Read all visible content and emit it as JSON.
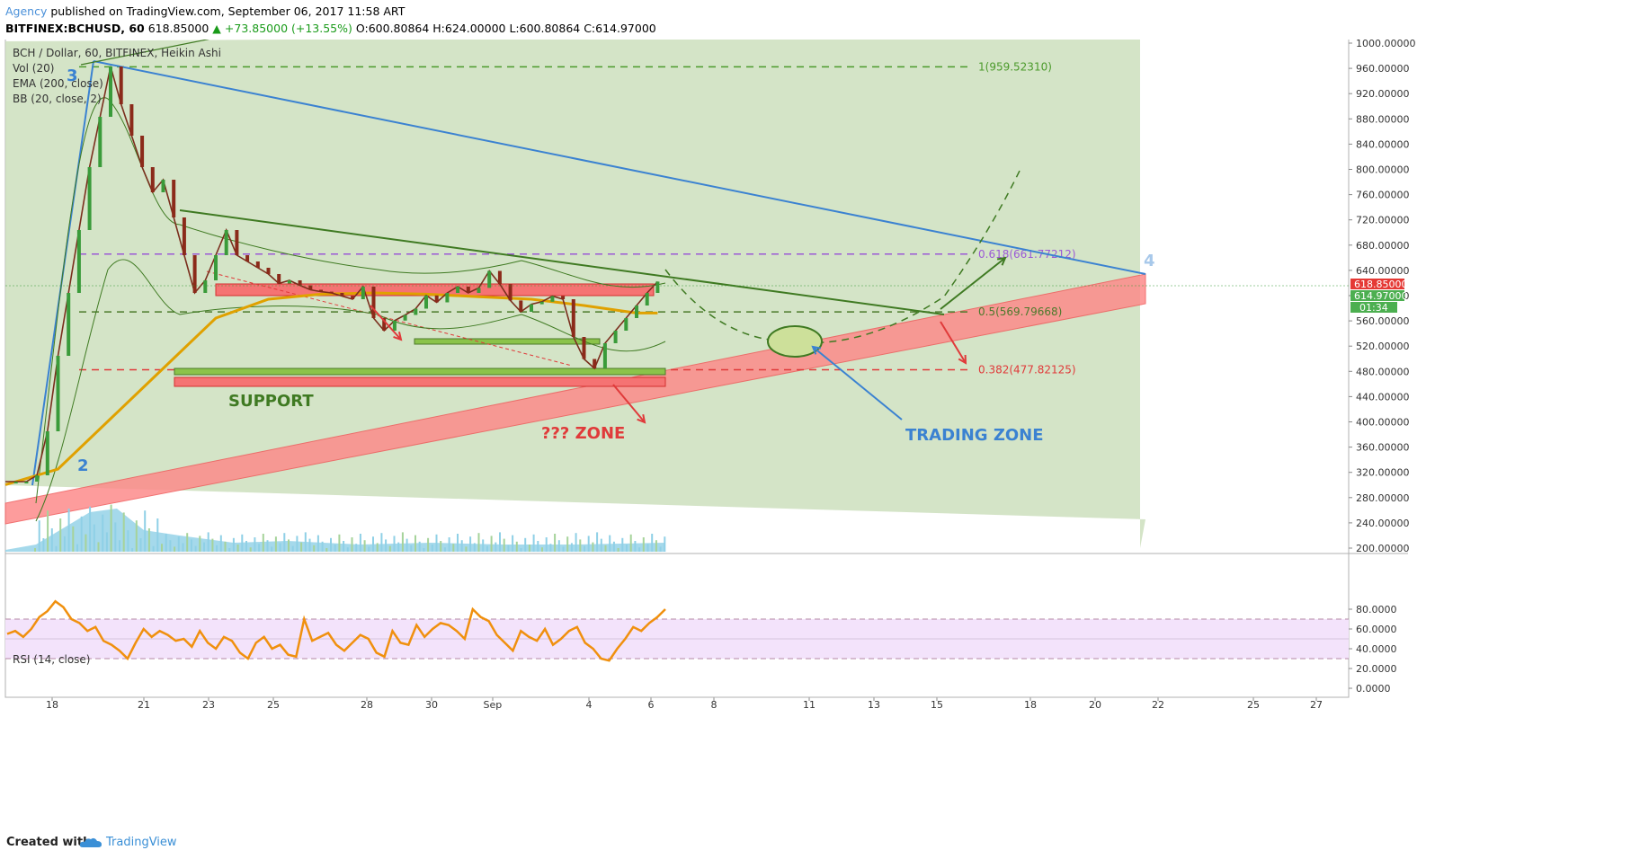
{
  "header": {
    "author": "Agency",
    "published": "published on TradingView.com, September 06, 2017 11:58 ART",
    "symbol": "BITFINEX:BCHUSD, 60",
    "last": "618.85000",
    "change": "+73.85000 (+13.55%)",
    "ohlc": "O:600.80864  H:624.00000  L:600.80864  C:614.97000"
  },
  "legend": {
    "title": "BCH / Dollar, 60, BITFINEX, Heikin Ashi",
    "vol": "Vol (20)",
    "ema": "EMA (200, close)",
    "bb": "BB (20, close, 2)",
    "rsi": "RSI (14, close)"
  },
  "chart_data": [
    {
      "type": "candlestick",
      "title": "BCH / Dollar, 60, BITFINEX, Heikin Ashi",
      "ylim": [
        200,
        1000
      ],
      "y_ticks": [
        "1000.00000",
        "960.00000",
        "920.00000",
        "880.00000",
        "840.00000",
        "800.00000",
        "760.00000",
        "720.00000",
        "680.00000",
        "640.00000",
        "600.00000",
        "560.00000",
        "520.00000",
        "480.00000",
        "440.00000",
        "400.00000",
        "360.00000",
        "320.00000",
        "280.00000",
        "240.00000",
        "200.00000"
      ],
      "x_ticks": [
        "18",
        "21",
        "23",
        "25",
        "28",
        "30",
        "Sep",
        "4",
        "6",
        "8",
        "11",
        "13",
        "15",
        "18",
        "20",
        "22",
        "25",
        "27"
      ],
      "price_path": [
        [
          0,
          300
        ],
        [
          2,
          300
        ],
        [
          4,
          300
        ],
        [
          6,
          310
        ],
        [
          8,
          380
        ],
        [
          10,
          500
        ],
        [
          12,
          600
        ],
        [
          14,
          700
        ],
        [
          16,
          800
        ],
        [
          18,
          880
        ],
        [
          20,
          960
        ],
        [
          22,
          900
        ],
        [
          24,
          850
        ],
        [
          26,
          800
        ],
        [
          28,
          760
        ],
        [
          30,
          780
        ],
        [
          32,
          720
        ],
        [
          34,
          660
        ],
        [
          36,
          600
        ],
        [
          38,
          620
        ],
        [
          40,
          660
        ],
        [
          42,
          700
        ],
        [
          44,
          660
        ],
        [
          46,
          650
        ],
        [
          48,
          640
        ],
        [
          50,
          630
        ],
        [
          52,
          615
        ],
        [
          54,
          620
        ],
        [
          56,
          612
        ],
        [
          58,
          605
        ],
        [
          60,
          602
        ],
        [
          62,
          600
        ],
        [
          64,
          595
        ],
        [
          66,
          590
        ],
        [
          68,
          610
        ],
        [
          70,
          560
        ],
        [
          72,
          540
        ],
        [
          74,
          556
        ],
        [
          76,
          565
        ],
        [
          78,
          575
        ],
        [
          80,
          596
        ],
        [
          82,
          585
        ],
        [
          84,
          600
        ],
        [
          86,
          610
        ],
        [
          88,
          600
        ],
        [
          90,
          608
        ],
        [
          92,
          635
        ],
        [
          94,
          614
        ],
        [
          96,
          588
        ],
        [
          98,
          570
        ],
        [
          100,
          582
        ],
        [
          102,
          586
        ],
        [
          104,
          595
        ],
        [
          106,
          590
        ],
        [
          108,
          530
        ],
        [
          110,
          495
        ],
        [
          112,
          480
        ],
        [
          114,
          520
        ],
        [
          116,
          540
        ],
        [
          118,
          560
        ],
        [
          120,
          580
        ],
        [
          122,
          600
        ],
        [
          124,
          618
        ]
      ],
      "ema200_path": [
        [
          0,
          295
        ],
        [
          10,
          320
        ],
        [
          20,
          400
        ],
        [
          30,
          480
        ],
        [
          40,
          560
        ],
        [
          50,
          590
        ],
        [
          60,
          598
        ],
        [
          70,
          600
        ],
        [
          80,
          598
        ],
        [
          90,
          594
        ],
        [
          100,
          590
        ],
        [
          110,
          580
        ],
        [
          120,
          568
        ],
        [
          124,
          568
        ]
      ],
      "annotations": {
        "wave_labels": [
          "3",
          "2",
          "4"
        ],
        "fib_levels": [
          {
            "label": "1(959.52310)",
            "value": 959.5231,
            "color": "#4b9a2b"
          },
          {
            "label": "0.618(661.77212)",
            "value": 661.77212,
            "color": "#9b59d6"
          },
          {
            "label": "0.5(569.79668)",
            "value": 569.79668,
            "color": "#4b7a2b"
          },
          {
            "label": "0.382(477.82125)",
            "value": 477.82125,
            "color": "#e03a3a"
          }
        ],
        "support": "SUPPORT",
        "zone": "??? ZONE",
        "trading_zone": "TRADING ZONE",
        "last_price": "618.85000",
        "close_price": "614.97000",
        "countdown": "01:34"
      }
    },
    {
      "type": "line",
      "title": "RSI (14, close)",
      "ylim": [
        0,
        90
      ],
      "y_ticks": [
        "80.0000",
        "60.0000",
        "40.0000",
        "20.0000",
        "0.0000"
      ],
      "band": [
        30,
        70
      ],
      "values": [
        55,
        58,
        52,
        60,
        72,
        78,
        88,
        82,
        70,
        66,
        58,
        62,
        48,
        44,
        38,
        30,
        46,
        60,
        52,
        58,
        54,
        48,
        50,
        42,
        58,
        46,
        40,
        52,
        48,
        36,
        30,
        46,
        52,
        40,
        44,
        34,
        32,
        70,
        48,
        52,
        56,
        44,
        38,
        46,
        54,
        50,
        36,
        32,
        58,
        46,
        44,
        64,
        52,
        60,
        66,
        64,
        58,
        50,
        80,
        72,
        68,
        54,
        46,
        38,
        58,
        52,
        48,
        60,
        44,
        50,
        58,
        62,
        46,
        40,
        30,
        28,
        40,
        50,
        62,
        58,
        66,
        72,
        80
      ]
    }
  ],
  "footer": {
    "created_with": "Created with",
    "brand": "TradingView"
  }
}
